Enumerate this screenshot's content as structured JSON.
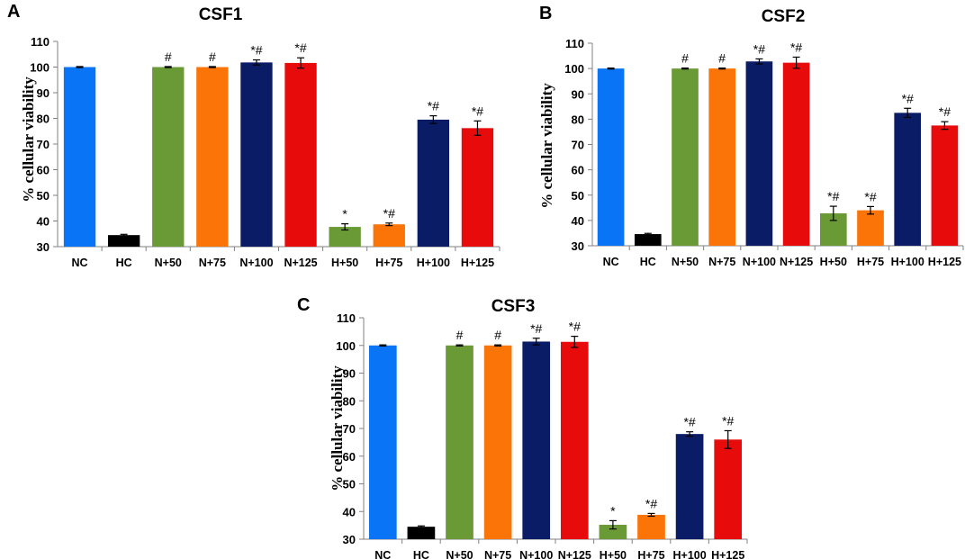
{
  "chart_data": [
    {
      "type": "bar",
      "panel": "A",
      "title": "CSF1",
      "xlabel": "",
      "ylabel": "% cellular viability",
      "ylim": [
        30,
        110
      ],
      "yticks": [
        30,
        40,
        50,
        60,
        70,
        80,
        90,
        100,
        110
      ],
      "categories": [
        "NC",
        "HC",
        "N+50",
        "N+75",
        "N+100",
        "N+125",
        "H+50",
        "H+75",
        "H+100",
        "H+125"
      ],
      "values": [
        100,
        34.5,
        100,
        100,
        101.8,
        101.6,
        37.7,
        38.7,
        79.5,
        76.2
      ],
      "errors": [
        0.2,
        0.3,
        0.2,
        0.2,
        1.0,
        2.0,
        1.2,
        0.5,
        1.5,
        2.8
      ],
      "annotations": [
        "",
        "",
        "#",
        "#",
        "*#",
        "*#",
        "*",
        "*#",
        "*#",
        "*#"
      ],
      "colors": [
        "#0a74f7",
        "#000000",
        "#6a9a35",
        "#fb7408",
        "#0a1c65",
        "#e80b0b",
        "#6a9a35",
        "#fb7408",
        "#0a1c65",
        "#e80b0b"
      ]
    },
    {
      "type": "bar",
      "panel": "B",
      "title": "CSF2",
      "xlabel": "",
      "ylabel": "% cellular viability",
      "ylim": [
        30,
        110
      ],
      "yticks": [
        30,
        40,
        50,
        60,
        70,
        80,
        90,
        100,
        110
      ],
      "categories": [
        "NC",
        "HC",
        "N+50",
        "N+75",
        "N+100",
        "N+125",
        "H+50",
        "H+75",
        "H+100",
        "H+125"
      ],
      "values": [
        100,
        34.6,
        100,
        100,
        102.8,
        102.3,
        42.8,
        44.0,
        82.5,
        77.5
      ],
      "errors": [
        0.2,
        0.3,
        0.2,
        0.2,
        1.0,
        2.2,
        2.8,
        1.5,
        1.8,
        1.5
      ],
      "annotations": [
        "",
        "",
        "#",
        "#",
        "*#",
        "*#",
        "*#",
        "*#",
        "*#",
        "*#"
      ],
      "colors": [
        "#0a74f7",
        "#000000",
        "#6a9a35",
        "#fb7408",
        "#0a1c65",
        "#e80b0b",
        "#6a9a35",
        "#fb7408",
        "#0a1c65",
        "#e80b0b"
      ]
    },
    {
      "type": "bar",
      "panel": "C",
      "title": "CSF3",
      "xlabel": "",
      "ylabel": "% cellular viability",
      "ylim": [
        30,
        110
      ],
      "yticks": [
        30,
        40,
        50,
        60,
        70,
        80,
        90,
        100,
        110
      ],
      "categories": [
        "NC",
        "HC",
        "N+50",
        "N+75",
        "N+100",
        "N+125",
        "H+50",
        "H+75",
        "H+100",
        "H+125"
      ],
      "values": [
        100,
        34.5,
        100,
        100,
        101.4,
        101.3,
        35.2,
        38.8,
        68.0,
        66.0
      ],
      "errors": [
        0.2,
        0.3,
        0.2,
        0.2,
        1.2,
        2.0,
        1.5,
        0.5,
        0.8,
        3.2
      ],
      "annotations": [
        "",
        "",
        "#",
        "#",
        "*#",
        "*#",
        "*",
        "*#",
        "*#",
        "*#"
      ],
      "colors": [
        "#0a74f7",
        "#000000",
        "#6a9a35",
        "#fb7408",
        "#0a1c65",
        "#e80b0b",
        "#6a9a35",
        "#fb7408",
        "#0a1c65",
        "#e80b0b"
      ]
    }
  ]
}
